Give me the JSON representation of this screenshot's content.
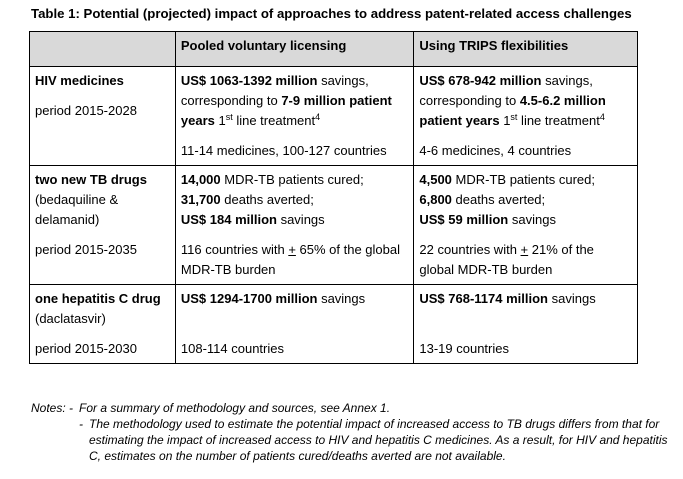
{
  "title": "Table 1: Potential (projected) impact of approaches to address patent-related access challenges",
  "headers": [
    "",
    "Pooled voluntary licensing",
    "Using TRIPS flexibilities"
  ],
  "rows": [
    {
      "label": "HIV medicines",
      "label_sub": "",
      "period": "period 2015-2028",
      "pooled": {
        "s1_bold": "US$ 1063-1392 million",
        "s1_text": " savings, corresponding to ",
        "s2_bold": "7-9 million patient years",
        "s2_text": " 1",
        "sup1": "st",
        "s3_text": " line treatment",
        "sup2": "4",
        "bottom": "11-14 medicines, 100-127 countries"
      },
      "trips": {
        "s1_bold": "US$ 678-942 million",
        "s1_text": " savings, corresponding to ",
        "s2_bold": "4.5-6.2 million patient years",
        "s2_text": " 1",
        "sup1": "st",
        "s3_text": " line treatment",
        "sup2": "4",
        "bottom": "4-6 medicines, 4 countries"
      }
    },
    {
      "label": "two new TB drugs",
      "label_sub": "(bedaquiline & delamanid)",
      "period": "period 2015-2035",
      "pooled": {
        "l1_bold": "14,000",
        "l1_text": " MDR-TB patients cured;",
        "l2_bold": "31,700",
        "l2_text": " deaths averted;",
        "l3_bold": "US$ 184 million",
        "l3_text": " savings",
        "b_pre": "116 countries with ",
        "b_pm": "+",
        "b_post": " 65% of the global MDR-TB burden"
      },
      "trips": {
        "l1_bold": "4,500",
        "l1_text": " MDR-TB patients cured;",
        "l2_bold": "6,800",
        "l2_text": " deaths averted;",
        "l3_bold": "US$ 59 million",
        "l3_text": " savings",
        "b_pre": "22 countries with ",
        "b_pm": "+",
        "b_post": " 21% of the global MDR-TB burden"
      }
    },
    {
      "label": "one hepatitis C drug",
      "label_sub": "(daclatasvir)",
      "period": "period 2015-2030",
      "pooled": {
        "s1_bold": "US$ 1294-1700 million",
        "s1_text": " savings",
        "bottom": "108-114 countries"
      },
      "trips": {
        "s1_bold": "US$ 768-1174 million",
        "s1_text": " savings",
        "bottom": "13-19 countries"
      }
    }
  ],
  "notes": {
    "label": "Notes: -",
    "dash": "-",
    "note1": "For a summary of methodology and sources, see Annex 1.",
    "note2": "The methodology used to estimate the potential impact of increased access to TB drugs differs from that for estimating the impact of increased access to HIV and hepatitis C medicines. As a result, for HIV and hepatitis C, estimates on the number of patients cured/deaths averted are not available."
  }
}
